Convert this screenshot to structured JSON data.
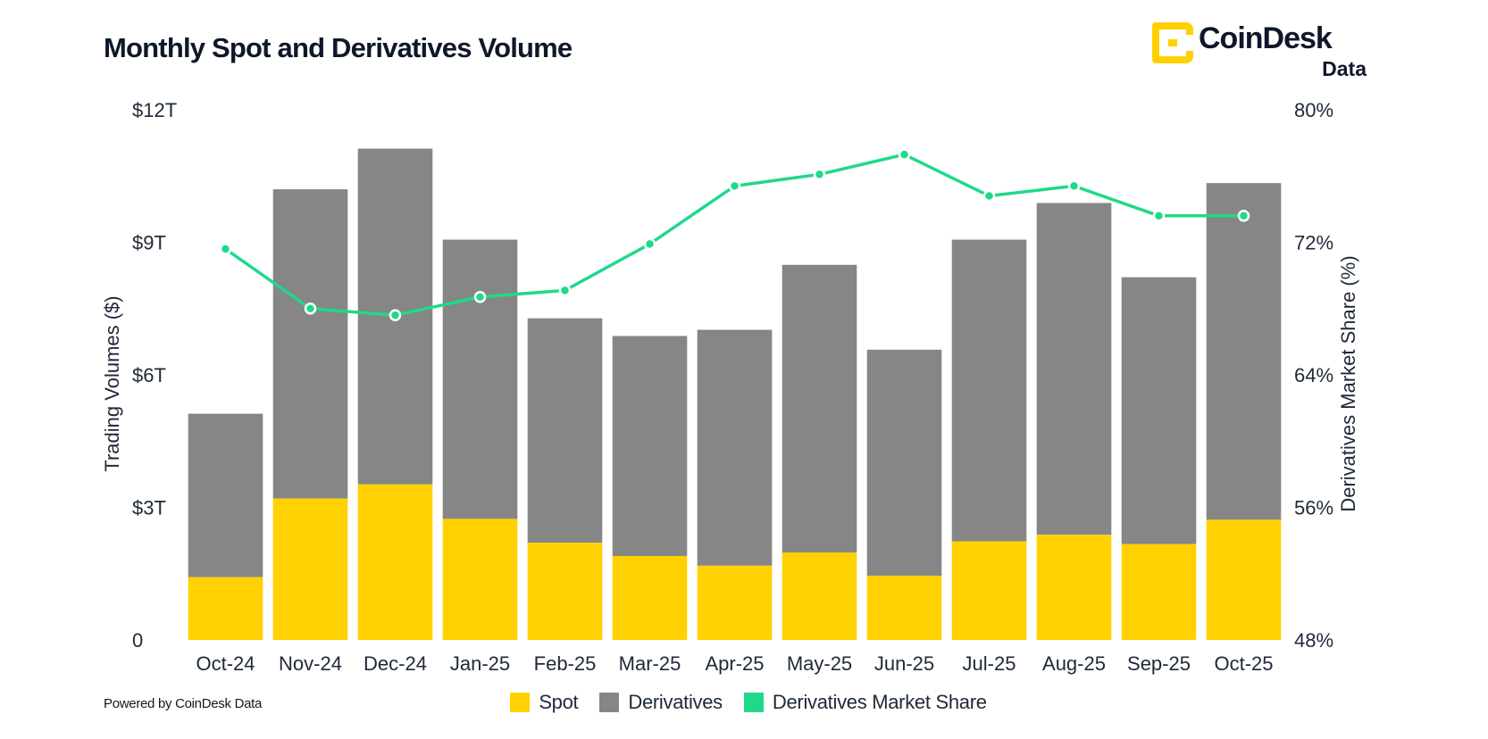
{
  "header": {
    "title": "Monthly Spot and Derivatives Volume",
    "brand_name": "CoinDesk",
    "brand_sub": "Data"
  },
  "footer": {
    "powered_by": "Powered by CoinDesk Data"
  },
  "colors": {
    "spot": "#FFD100",
    "derivatives": "#868686",
    "share": "#1FD98A"
  },
  "chart_data": {
    "type": "bar",
    "title": "Monthly Spot and Derivatives Volume",
    "stacked": true,
    "categories": [
      "Oct-24",
      "Nov-24",
      "Dec-24",
      "Jan-25",
      "Feb-25",
      "Mar-25",
      "Apr-25",
      "May-25",
      "Jun-25",
      "Jul-25",
      "Aug-25",
      "Sep-25",
      "Oct-25"
    ],
    "series": [
      {
        "name": "Spot",
        "axis": "left",
        "values": [
          1.42,
          3.2,
          3.52,
          2.74,
          2.2,
          1.9,
          1.68,
          1.98,
          1.45,
          2.23,
          2.38,
          2.17,
          2.72
        ]
      },
      {
        "name": "Derivatives",
        "axis": "left",
        "values": [
          3.7,
          7.0,
          7.6,
          6.32,
          5.08,
          4.98,
          5.34,
          6.51,
          5.12,
          6.83,
          7.51,
          6.04,
          7.62
        ]
      },
      {
        "name": "Derivatives Market Share",
        "axis": "right",
        "type": "line",
        "values": [
          71.6,
          68.0,
          67.6,
          68.7,
          69.1,
          71.9,
          75.4,
          76.1,
          77.3,
          74.8,
          75.4,
          73.6,
          73.6
        ]
      }
    ],
    "xlabel": "",
    "ylabel": "Trading Volumes ($)",
    "ylabel_right": "Derivatives Market Share (%)",
    "ylim": [
      0,
      12
    ],
    "ylim_right": [
      48,
      80
    ],
    "y_ticks": [
      "0",
      "$3T",
      "$6T",
      "$9T",
      "$12T"
    ],
    "y_right_ticks": [
      "48%",
      "56%",
      "64%",
      "72%",
      "80%"
    ],
    "grid": false,
    "legend": [
      "Spot",
      "Derivatives",
      "Derivatives Market Share"
    ],
    "legend_position": "bottom"
  }
}
